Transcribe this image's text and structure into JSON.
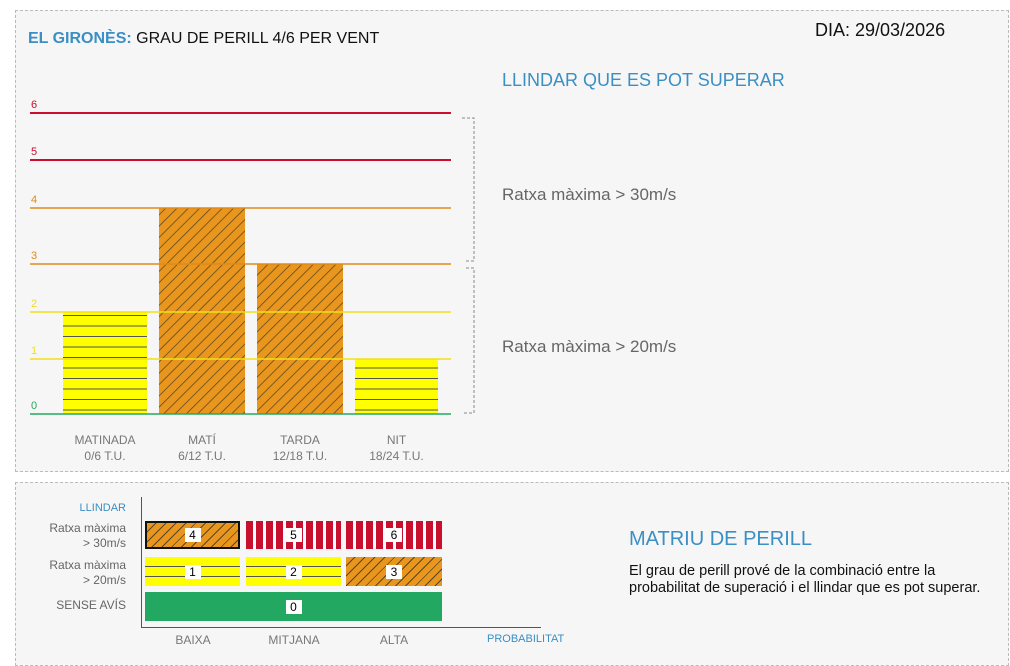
{
  "header": {
    "region": "EL GIRONÈS:",
    "title": "GRAU DE PERILL 4/6 PER VENT",
    "date": "DIA: 29/03/2026"
  },
  "threshold_panel": {
    "title": "LLINDAR QUE ES POT SUPERAR",
    "upper": "Ratxa màxima > 30m/s",
    "lower": "Ratxa màxima > 20m/s"
  },
  "chart_data": {
    "type": "bar",
    "categories": [
      "MATINADA",
      "MATÍ",
      "TARDA",
      "NIT"
    ],
    "sublabels": [
      "0/6 T.U.",
      "6/12 T.U.",
      "12/18 T.U.",
      "18/24 T.U."
    ],
    "values": [
      2,
      4,
      3,
      1
    ],
    "ylim": [
      0,
      6
    ],
    "yticks": [
      "0",
      "1",
      "2",
      "3",
      "4",
      "5",
      "6"
    ],
    "level_colors": {
      "0": "#22a860",
      "1": "#f2dd1a",
      "2": "#f2dd1a",
      "3": "#e08a1a",
      "4": "#e08a1a",
      "5": "#c8102e",
      "6": "#c8102e"
    }
  },
  "matrix": {
    "y_title": "LLINDAR",
    "x_title": "PROBABILITAT",
    "rows": [
      {
        "l1": "Ratxa màxima",
        "l2": "> 30m/s"
      },
      {
        "l1": "Ratxa màxima",
        "l2": "> 20m/s"
      },
      {
        "l1": "SENSE AVÍS",
        "l2": ""
      }
    ],
    "cols": [
      "BAIXA",
      "MITJANA",
      "ALTA"
    ],
    "cells": [
      "4",
      "5",
      "6",
      "1",
      "2",
      "3",
      "0"
    ],
    "heading": "MATRIU DE PERILL",
    "text": "El grau de perill prové de la combinació entre la probabilitat de superació i el llindar que es pot superar."
  }
}
